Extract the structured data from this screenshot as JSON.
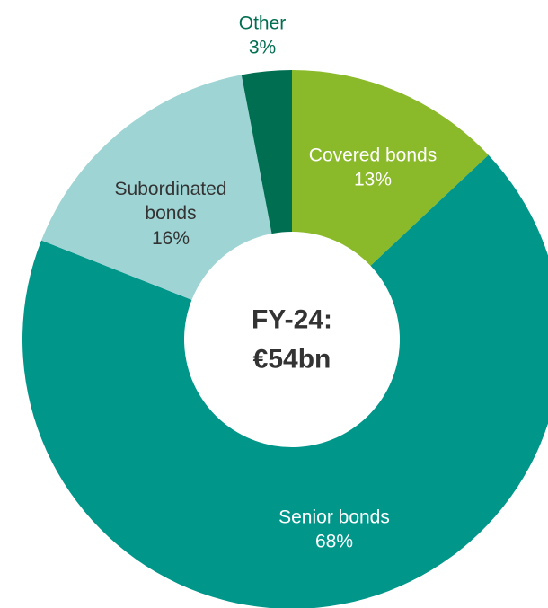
{
  "chart_data": {
    "type": "donut",
    "categories": [
      "Covered bonds",
      "Senior bonds",
      "Subordinated bonds",
      "Other"
    ],
    "values": [
      13,
      68,
      16,
      3
    ],
    "value_labels": [
      "13%",
      "68%",
      "16%",
      "3%"
    ],
    "colors": [
      "#8aba2a",
      "#00968a",
      "#9fd4d4",
      "#006e50"
    ],
    "center_label": [
      "FY-24:",
      "€54bn"
    ]
  }
}
